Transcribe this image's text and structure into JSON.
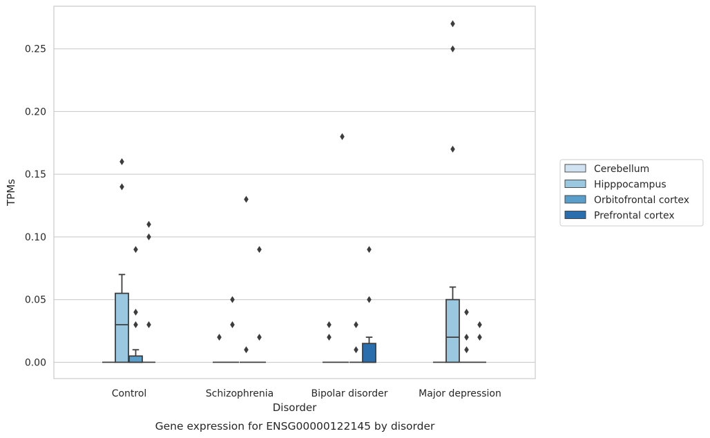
{
  "chart_data": {
    "type": "box",
    "categories": [
      "Control",
      "Schizophrenia",
      "Bipolar disorder",
      "Major depression"
    ],
    "xlabel": "Disorder",
    "ylabel": "TPMs",
    "caption": "Gene expression for ENSG00000122145 by disorder",
    "ylim": [
      -0.013,
      0.284
    ],
    "yticks": [
      0.0,
      0.05,
      0.1,
      0.15,
      0.2,
      0.25
    ],
    "ytick_labels": [
      "0.00",
      "0.05",
      "0.10",
      "0.15",
      "0.20",
      "0.25"
    ],
    "grid": "horizontal",
    "legend_position": "right",
    "series": [
      {
        "name": "Cerebellum",
        "color": "#d1e2f2",
        "boxes": [
          {
            "q1": 0,
            "median": 0,
            "q3": 0,
            "whisker_low": 0,
            "whisker_high": 0,
            "outliers": []
          },
          {
            "q1": 0,
            "median": 0,
            "q3": 0,
            "whisker_low": 0,
            "whisker_high": 0,
            "outliers": [
              0.02
            ]
          },
          {
            "q1": 0,
            "median": 0,
            "q3": 0,
            "whisker_low": 0,
            "whisker_high": 0,
            "outliers": [
              0.02,
              0.03
            ]
          },
          {
            "q1": 0,
            "median": 0,
            "q3": 0,
            "whisker_low": 0,
            "whisker_high": 0,
            "outliers": []
          }
        ]
      },
      {
        "name": "Hipppocampus",
        "color": "#9ac8e0",
        "boxes": [
          {
            "q1": 0,
            "median": 0.03,
            "q3": 0.055,
            "whisker_low": 0,
            "whisker_high": 0.07,
            "outliers": [
              0.14,
              0.16
            ]
          },
          {
            "q1": 0,
            "median": 0,
            "q3": 0,
            "whisker_low": 0,
            "whisker_high": 0,
            "outliers": [
              0.03,
              0.05
            ]
          },
          {
            "q1": 0,
            "median": 0,
            "q3": 0,
            "whisker_low": 0,
            "whisker_high": 0,
            "outliers": [
              0.18
            ]
          },
          {
            "q1": 0,
            "median": 0.02,
            "q3": 0.05,
            "whisker_low": 0,
            "whisker_high": 0.06,
            "outliers": [
              0.17,
              0.25,
              0.27
            ]
          }
        ]
      },
      {
        "name": "Orbitofrontal cortex",
        "color": "#5a9fcc",
        "boxes": [
          {
            "q1": 0,
            "median": 0,
            "q3": 0.005,
            "whisker_low": 0,
            "whisker_high": 0.01,
            "outliers": [
              0.03,
              0.04,
              0.09
            ]
          },
          {
            "q1": 0,
            "median": 0,
            "q3": 0,
            "whisker_low": 0,
            "whisker_high": 0,
            "outliers": [
              0.01,
              0.13
            ]
          },
          {
            "q1": 0,
            "median": 0,
            "q3": 0,
            "whisker_low": 0,
            "whisker_high": 0,
            "outliers": [
              0.01,
              0.03
            ]
          },
          {
            "q1": 0,
            "median": 0,
            "q3": 0,
            "whisker_low": 0,
            "whisker_high": 0,
            "outliers": [
              0.01,
              0.02,
              0.04
            ]
          }
        ]
      },
      {
        "name": "Prefrontal cortex",
        "color": "#2a6ead",
        "boxes": [
          {
            "q1": 0,
            "median": 0,
            "q3": 0,
            "whisker_low": 0,
            "whisker_high": 0,
            "outliers": [
              0.03,
              0.1,
              0.11
            ]
          },
          {
            "q1": 0,
            "median": 0,
            "q3": 0,
            "whisker_low": 0,
            "whisker_high": 0,
            "outliers": [
              0.02,
              0.09
            ]
          },
          {
            "q1": 0,
            "median": 0,
            "q3": 0.015,
            "whisker_low": 0,
            "whisker_high": 0.02,
            "outliers": [
              0.05,
              0.09
            ]
          },
          {
            "q1": 0,
            "median": 0,
            "q3": 0,
            "whisker_low": 0,
            "whisker_high": 0,
            "outliers": [
              0.02,
              0.03
            ]
          }
        ]
      }
    ]
  }
}
